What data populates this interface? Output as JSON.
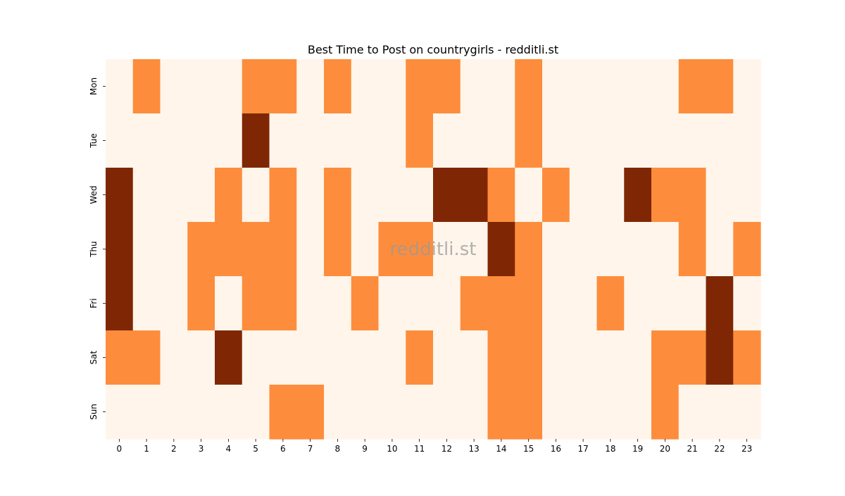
{
  "chart_data": {
    "type": "heatmap",
    "title": "Best Time to Post on countrygirls - redditli.st",
    "watermark": "redditli.st",
    "x_categories": [
      "0",
      "1",
      "2",
      "3",
      "4",
      "5",
      "6",
      "7",
      "8",
      "9",
      "10",
      "11",
      "12",
      "13",
      "14",
      "15",
      "16",
      "17",
      "18",
      "19",
      "20",
      "21",
      "22",
      "23"
    ],
    "y_categories": [
      "Mon",
      "Tue",
      "Wed",
      "Thu",
      "Fri",
      "Sat",
      "Sun"
    ],
    "values": [
      [
        0,
        1,
        0,
        0,
        0,
        1,
        1,
        0,
        1,
        0,
        0,
        1,
        1,
        0,
        0,
        1,
        0,
        0,
        0,
        0,
        0,
        1,
        1,
        0
      ],
      [
        0,
        0,
        0,
        0,
        0,
        2,
        0,
        0,
        0,
        0,
        0,
        1,
        0,
        0,
        0,
        1,
        0,
        0,
        0,
        0,
        0,
        0,
        0,
        0
      ],
      [
        2,
        0,
        0,
        0,
        1,
        0,
        1,
        0,
        1,
        0,
        0,
        0,
        2,
        2,
        1,
        0,
        1,
        0,
        0,
        2,
        1,
        1,
        0,
        0
      ],
      [
        2,
        0,
        0,
        1,
        1,
        1,
        1,
        0,
        1,
        0,
        1,
        1,
        0,
        0,
        2,
        1,
        0,
        0,
        0,
        0,
        0,
        1,
        0,
        1
      ],
      [
        2,
        0,
        0,
        1,
        0,
        1,
        1,
        0,
        0,
        1,
        0,
        0,
        0,
        1,
        1,
        1,
        0,
        0,
        1,
        0,
        0,
        0,
        2,
        0
      ],
      [
        1,
        1,
        0,
        0,
        2,
        0,
        0,
        0,
        0,
        0,
        0,
        1,
        0,
        0,
        1,
        1,
        0,
        0,
        0,
        0,
        1,
        1,
        2,
        1
      ],
      [
        0,
        0,
        0,
        0,
        0,
        0,
        1,
        1,
        0,
        0,
        0,
        0,
        0,
        0,
        1,
        1,
        0,
        0,
        0,
        0,
        1,
        0,
        0,
        0
      ]
    ],
    "colors": [
      "#fff5eb",
      "#fd8d3c",
      "#7f2704"
    ],
    "xlabel": "",
    "ylabel": ""
  }
}
